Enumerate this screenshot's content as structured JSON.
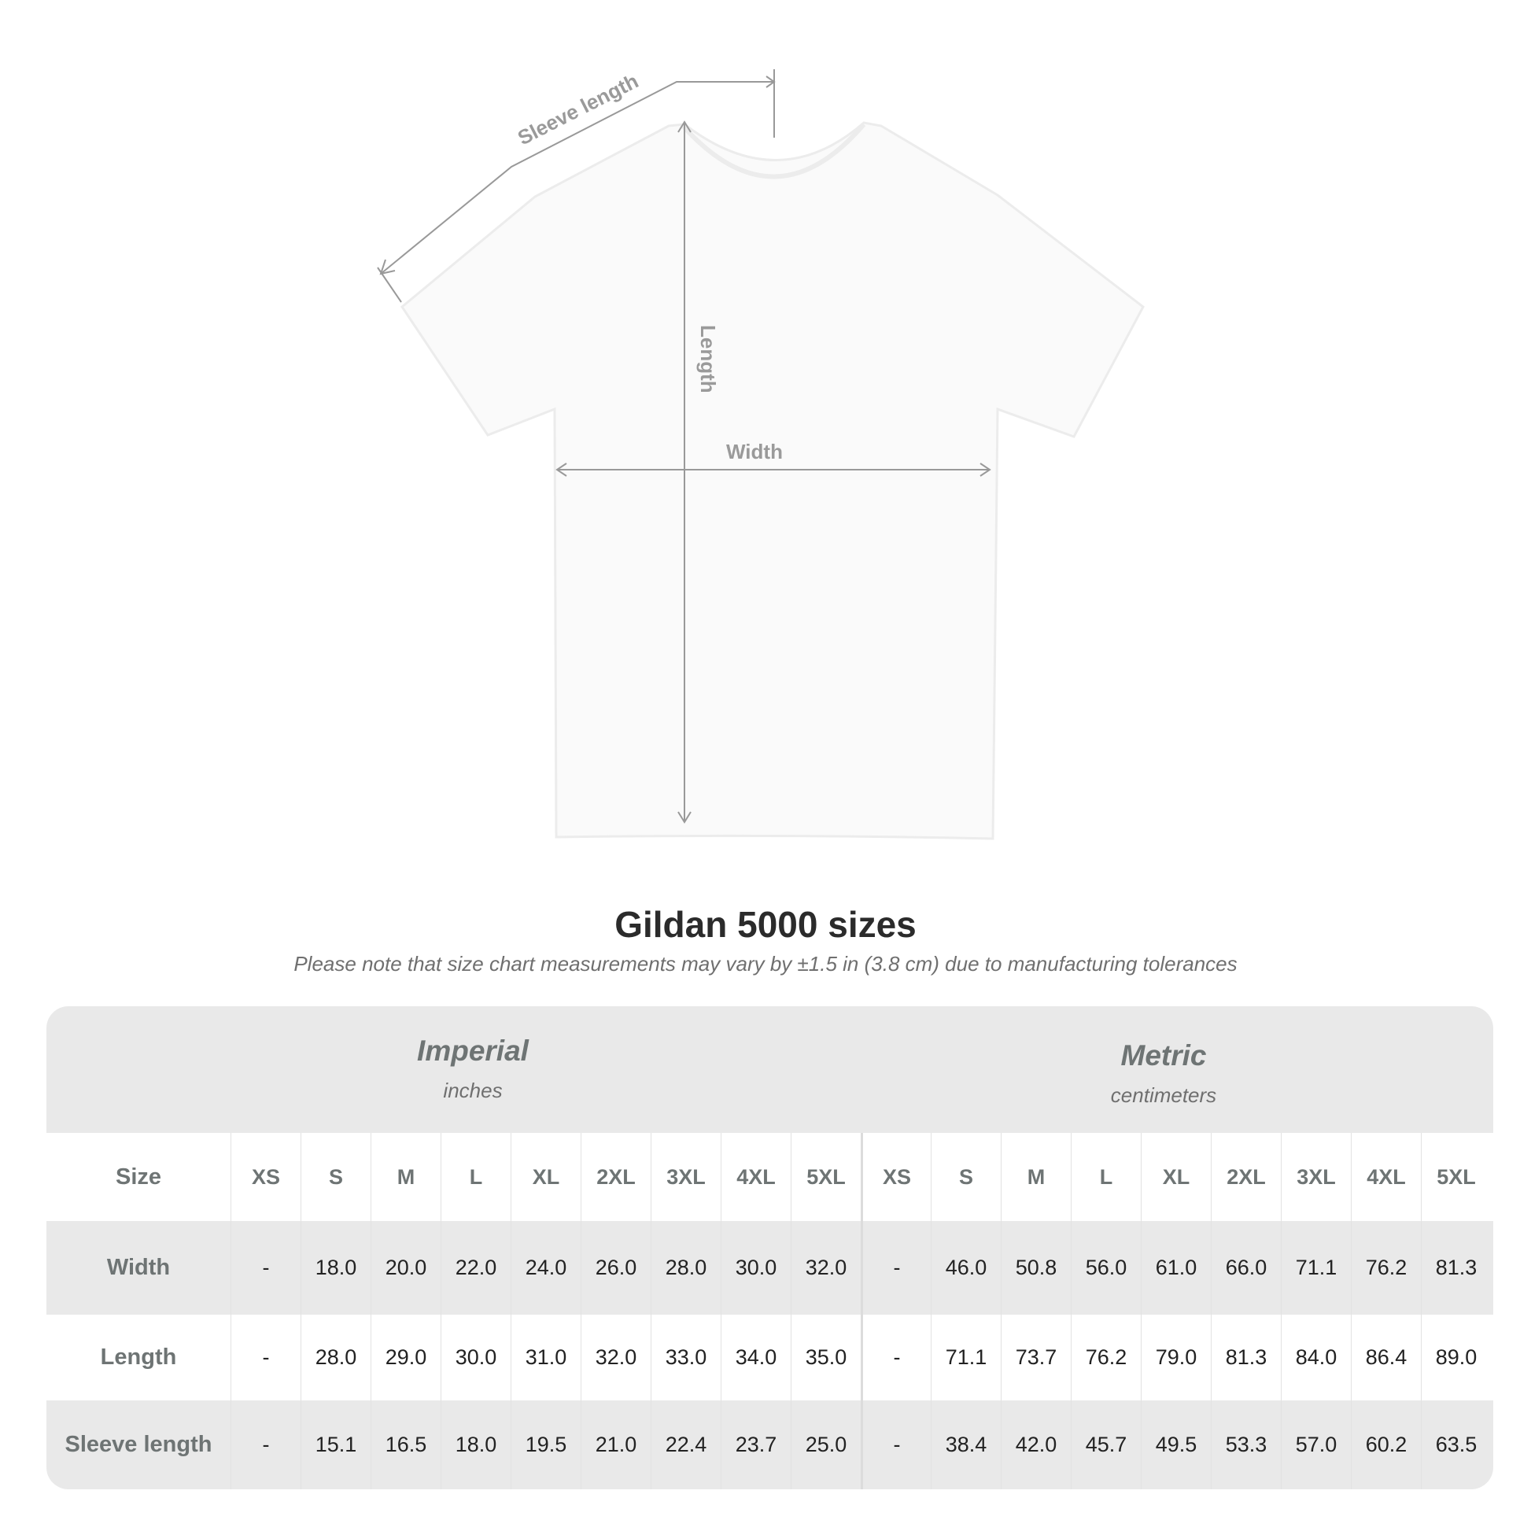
{
  "diagram": {
    "sleeve_label": "Sleeve length",
    "length_label": "Length",
    "width_label": "Width"
  },
  "title": "Gildan 5000 sizes",
  "note": "Please note that size chart measurements may vary by ±1.5 in (3.8 cm) due to manufacturing tolerances",
  "table": {
    "imperial": {
      "name": "Imperial",
      "unit": "inches"
    },
    "metric": {
      "name": "Metric",
      "unit": "centimeters"
    },
    "size_label": "Size",
    "sizes": [
      "XS",
      "S",
      "M",
      "L",
      "XL",
      "2XL",
      "3XL",
      "4XL",
      "5XL"
    ],
    "rows": [
      {
        "label": "Width",
        "imperial": [
          "-",
          "18.0",
          "20.0",
          "22.0",
          "24.0",
          "26.0",
          "28.0",
          "30.0",
          "32.0"
        ],
        "metric": [
          "-",
          "46.0",
          "50.8",
          "56.0",
          "61.0",
          "66.0",
          "71.1",
          "76.2",
          "81.3"
        ]
      },
      {
        "label": "Length",
        "imperial": [
          "-",
          "28.0",
          "29.0",
          "30.0",
          "31.0",
          "32.0",
          "33.0",
          "34.0",
          "35.0"
        ],
        "metric": [
          "-",
          "71.1",
          "73.7",
          "76.2",
          "79.0",
          "81.3",
          "84.0",
          "86.4",
          "89.0"
        ]
      },
      {
        "label": "Sleeve length",
        "imperial": [
          "-",
          "15.1",
          "16.5",
          "18.0",
          "19.5",
          "21.0",
          "22.4",
          "23.7",
          "25.0"
        ],
        "metric": [
          "-",
          "38.4",
          "42.0",
          "45.7",
          "49.5",
          "53.3",
          "57.0",
          "60.2",
          "63.5"
        ]
      }
    ]
  }
}
